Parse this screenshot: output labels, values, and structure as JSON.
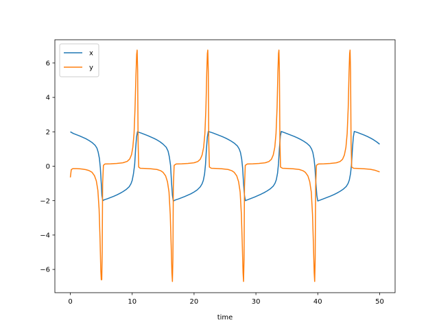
{
  "chart_data": {
    "type": "line",
    "title": "",
    "xlabel": "time",
    "ylabel": "",
    "xlim": [
      -2.5,
      52.5
    ],
    "ylim": [
      -7.35,
      7.35
    ],
    "xticks": [
      0,
      10,
      20,
      30,
      40,
      50
    ],
    "yticks": [
      -6,
      -4,
      -2,
      0,
      2,
      4,
      6
    ],
    "grid": false,
    "legend_position": "top-left",
    "series": [
      {
        "name": "x",
        "color": "#1f77b4",
        "points": [
          [
            0,
            2.0
          ],
          [
            0.5,
            1.9
          ],
          [
            1,
            1.83
          ],
          [
            1.5,
            1.76
          ],
          [
            2,
            1.68
          ],
          [
            2.5,
            1.6
          ],
          [
            3,
            1.5
          ],
          [
            3.5,
            1.38
          ],
          [
            4,
            1.22
          ],
          [
            4.3,
            1.05
          ],
          [
            4.5,
            0.82
          ],
          [
            4.7,
            0.45
          ],
          [
            4.85,
            -0.1
          ],
          [
            5,
            -1.0
          ],
          [
            5.1,
            -1.7
          ],
          [
            5.25,
            -2.0
          ],
          [
            5.5,
            -1.95
          ],
          [
            6,
            -1.89
          ],
          [
            6.5,
            -1.82
          ],
          [
            7,
            -1.75
          ],
          [
            7.5,
            -1.67
          ],
          [
            8,
            -1.58
          ],
          [
            8.5,
            -1.48
          ],
          [
            9,
            -1.36
          ],
          [
            9.5,
            -1.2
          ],
          [
            9.8,
            -1.02
          ],
          [
            10,
            -0.82
          ],
          [
            10.2,
            -0.45
          ],
          [
            10.4,
            0.1
          ],
          [
            10.55,
            1.0
          ],
          [
            10.7,
            1.7
          ],
          [
            10.85,
            2.0
          ],
          [
            11.5,
            1.92
          ],
          [
            12,
            1.85
          ],
          [
            12.5,
            1.78
          ],
          [
            13,
            1.7
          ],
          [
            13.5,
            1.62
          ],
          [
            14,
            1.53
          ],
          [
            14.5,
            1.42
          ],
          [
            15,
            1.28
          ],
          [
            15.5,
            1.1
          ],
          [
            15.8,
            0.88
          ],
          [
            16,
            0.55
          ],
          [
            16.2,
            0.05
          ],
          [
            16.35,
            -0.9
          ],
          [
            16.5,
            -1.7
          ],
          [
            16.65,
            -2.02
          ],
          [
            17,
            -1.96
          ],
          [
            17.5,
            -1.9
          ],
          [
            18,
            -1.83
          ],
          [
            18.5,
            -1.76
          ],
          [
            19,
            -1.68
          ],
          [
            19.5,
            -1.6
          ],
          [
            20,
            -1.5
          ],
          [
            20.5,
            -1.38
          ],
          [
            21,
            -1.2
          ],
          [
            21.3,
            -1.02
          ],
          [
            21.5,
            -0.82
          ],
          [
            21.7,
            -0.45
          ],
          [
            21.85,
            0.1
          ],
          [
            22,
            1.0
          ],
          [
            22.15,
            1.7
          ],
          [
            22.3,
            2.02
          ],
          [
            23,
            1.94
          ],
          [
            23.5,
            1.87
          ],
          [
            24,
            1.8
          ],
          [
            24.5,
            1.73
          ],
          [
            25,
            1.65
          ],
          [
            25.5,
            1.56
          ],
          [
            26,
            1.46
          ],
          [
            26.5,
            1.34
          ],
          [
            27,
            1.18
          ],
          [
            27.3,
            1.0
          ],
          [
            27.5,
            0.8
          ],
          [
            27.7,
            0.42
          ],
          [
            27.85,
            -0.1
          ],
          [
            28,
            -1.0
          ],
          [
            28.15,
            -1.7
          ],
          [
            28.3,
            -2.0
          ],
          [
            28.8,
            -1.93
          ],
          [
            29.3,
            -1.86
          ],
          [
            29.8,
            -1.79
          ],
          [
            30.3,
            -1.71
          ],
          [
            30.8,
            -1.63
          ],
          [
            31.3,
            -1.54
          ],
          [
            31.8,
            -1.44
          ],
          [
            32.3,
            -1.32
          ],
          [
            32.8,
            -1.16
          ],
          [
            33.1,
            -0.98
          ],
          [
            33.3,
            -0.78
          ],
          [
            33.5,
            -0.4
          ],
          [
            33.65,
            0.15
          ],
          [
            33.8,
            1.05
          ],
          [
            33.95,
            1.75
          ],
          [
            34.1,
            2.02
          ],
          [
            34.7,
            1.94
          ],
          [
            35.2,
            1.87
          ],
          [
            35.7,
            1.8
          ],
          [
            36.2,
            1.73
          ],
          [
            36.7,
            1.65
          ],
          [
            37.2,
            1.56
          ],
          [
            37.7,
            1.46
          ],
          [
            38.2,
            1.34
          ],
          [
            38.7,
            1.18
          ],
          [
            39,
            1.0
          ],
          [
            39.2,
            0.8
          ],
          [
            39.4,
            0.42
          ],
          [
            39.55,
            -0.1
          ],
          [
            39.7,
            -1.0
          ],
          [
            39.85,
            -1.7
          ],
          [
            40,
            -2.02
          ],
          [
            40.6,
            -1.94
          ],
          [
            41.1,
            -1.87
          ],
          [
            41.6,
            -1.8
          ],
          [
            42.1,
            -1.73
          ],
          [
            42.6,
            -1.65
          ],
          [
            43.1,
            -1.56
          ],
          [
            43.6,
            -1.46
          ],
          [
            44.1,
            -1.34
          ],
          [
            44.6,
            -1.18
          ],
          [
            44.9,
            -1.0
          ],
          [
            45.1,
            -0.8
          ],
          [
            45.3,
            -0.42
          ],
          [
            45.45,
            0.1
          ],
          [
            45.6,
            1.0
          ],
          [
            45.75,
            1.7
          ],
          [
            45.9,
            2.02
          ],
          [
            46.5,
            1.95
          ],
          [
            47,
            1.88
          ],
          [
            47.5,
            1.81
          ],
          [
            48,
            1.73
          ],
          [
            48.5,
            1.64
          ],
          [
            49,
            1.54
          ],
          [
            49.5,
            1.42
          ],
          [
            50,
            1.28
          ]
        ]
      },
      {
        "name": "y",
        "color": "#ff7f0e",
        "points": [
          [
            0,
            -0.65
          ],
          [
            0.15,
            -0.2
          ],
          [
            0.4,
            -0.14
          ],
          [
            1,
            -0.14
          ],
          [
            1.5,
            -0.15
          ],
          [
            2,
            -0.17
          ],
          [
            2.5,
            -0.2
          ],
          [
            3,
            -0.25
          ],
          [
            3.5,
            -0.35
          ],
          [
            3.9,
            -0.55
          ],
          [
            4.2,
            -0.85
          ],
          [
            4.45,
            -1.4
          ],
          [
            4.65,
            -2.5
          ],
          [
            4.8,
            -4.2
          ],
          [
            4.92,
            -6.0
          ],
          [
            5.0,
            -6.6
          ],
          [
            5.08,
            -6.6
          ],
          [
            5.15,
            -5.0
          ],
          [
            5.22,
            -1.0
          ],
          [
            5.35,
            0.05
          ],
          [
            5.6,
            0.13
          ],
          [
            6.5,
            0.14
          ],
          [
            7.5,
            0.16
          ],
          [
            8.5,
            0.2
          ],
          [
            9.2,
            0.28
          ],
          [
            9.6,
            0.42
          ],
          [
            9.9,
            0.68
          ],
          [
            10.1,
            1.1
          ],
          [
            10.3,
            1.9
          ],
          [
            10.45,
            3.3
          ],
          [
            10.6,
            5.2
          ],
          [
            10.72,
            6.5
          ],
          [
            10.8,
            6.75
          ],
          [
            10.88,
            5.6
          ],
          [
            10.95,
            1.5
          ],
          [
            11.05,
            -0.05
          ],
          [
            11.3,
            -0.12
          ],
          [
            12,
            -0.13
          ],
          [
            13,
            -0.15
          ],
          [
            14,
            -0.19
          ],
          [
            14.6,
            -0.26
          ],
          [
            15,
            -0.36
          ],
          [
            15.4,
            -0.56
          ],
          [
            15.7,
            -0.9
          ],
          [
            15.95,
            -1.5
          ],
          [
            16.15,
            -2.8
          ],
          [
            16.3,
            -4.6
          ],
          [
            16.42,
            -6.2
          ],
          [
            16.5,
            -6.7
          ],
          [
            16.58,
            -5.4
          ],
          [
            16.65,
            -1.2
          ],
          [
            16.78,
            0.05
          ],
          [
            17.1,
            0.13
          ],
          [
            18,
            0.14
          ],
          [
            19,
            0.16
          ],
          [
            20,
            0.2
          ],
          [
            20.6,
            0.27
          ],
          [
            21,
            0.4
          ],
          [
            21.3,
            0.65
          ],
          [
            21.55,
            1.1
          ],
          [
            21.75,
            1.9
          ],
          [
            21.92,
            3.4
          ],
          [
            22.05,
            5.4
          ],
          [
            22.15,
            6.55
          ],
          [
            22.22,
            6.75
          ],
          [
            22.3,
            5.5
          ],
          [
            22.38,
            1.4
          ],
          [
            22.48,
            -0.05
          ],
          [
            22.8,
            -0.12
          ],
          [
            23.5,
            -0.13
          ],
          [
            24.5,
            -0.15
          ],
          [
            25.5,
            -0.19
          ],
          [
            26.1,
            -0.26
          ],
          [
            26.5,
            -0.36
          ],
          [
            26.9,
            -0.56
          ],
          [
            27.2,
            -0.9
          ],
          [
            27.45,
            -1.5
          ],
          [
            27.65,
            -2.8
          ],
          [
            27.8,
            -4.6
          ],
          [
            27.92,
            -6.2
          ],
          [
            28.0,
            -6.7
          ],
          [
            28.08,
            -5.4
          ],
          [
            28.15,
            -1.2
          ],
          [
            28.28,
            0.05
          ],
          [
            28.6,
            0.13
          ],
          [
            29.5,
            0.14
          ],
          [
            30.5,
            0.16
          ],
          [
            31.5,
            0.2
          ],
          [
            32.1,
            0.27
          ],
          [
            32.5,
            0.4
          ],
          [
            32.8,
            0.65
          ],
          [
            33.05,
            1.1
          ],
          [
            33.25,
            1.9
          ],
          [
            33.42,
            3.4
          ],
          [
            33.55,
            5.4
          ],
          [
            33.65,
            6.55
          ],
          [
            33.72,
            6.75
          ],
          [
            33.8,
            5.5
          ],
          [
            33.88,
            1.4
          ],
          [
            33.98,
            -0.05
          ],
          [
            34.3,
            -0.12
          ],
          [
            35,
            -0.13
          ],
          [
            36,
            -0.15
          ],
          [
            37,
            -0.19
          ],
          [
            37.6,
            -0.26
          ],
          [
            38,
            -0.36
          ],
          [
            38.4,
            -0.56
          ],
          [
            38.7,
            -0.9
          ],
          [
            38.95,
            -1.5
          ],
          [
            39.15,
            -2.8
          ],
          [
            39.3,
            -4.6
          ],
          [
            39.42,
            -6.2
          ],
          [
            39.5,
            -6.7
          ],
          [
            39.58,
            -5.4
          ],
          [
            39.65,
            -1.2
          ],
          [
            39.78,
            0.05
          ],
          [
            40.1,
            0.13
          ],
          [
            41,
            0.14
          ],
          [
            42,
            0.16
          ],
          [
            43,
            0.2
          ],
          [
            43.6,
            0.27
          ],
          [
            44,
            0.4
          ],
          [
            44.3,
            0.65
          ],
          [
            44.55,
            1.1
          ],
          [
            44.75,
            1.9
          ],
          [
            44.92,
            3.4
          ],
          [
            45.05,
            5.4
          ],
          [
            45.15,
            6.55
          ],
          [
            45.22,
            6.75
          ],
          [
            45.3,
            5.5
          ],
          [
            45.38,
            1.4
          ],
          [
            45.48,
            -0.05
          ],
          [
            45.8,
            -0.12
          ],
          [
            46.5,
            -0.13
          ],
          [
            47.5,
            -0.15
          ],
          [
            48.5,
            -0.18
          ],
          [
            49.3,
            -0.24
          ],
          [
            50,
            -0.33
          ]
        ]
      }
    ]
  }
}
